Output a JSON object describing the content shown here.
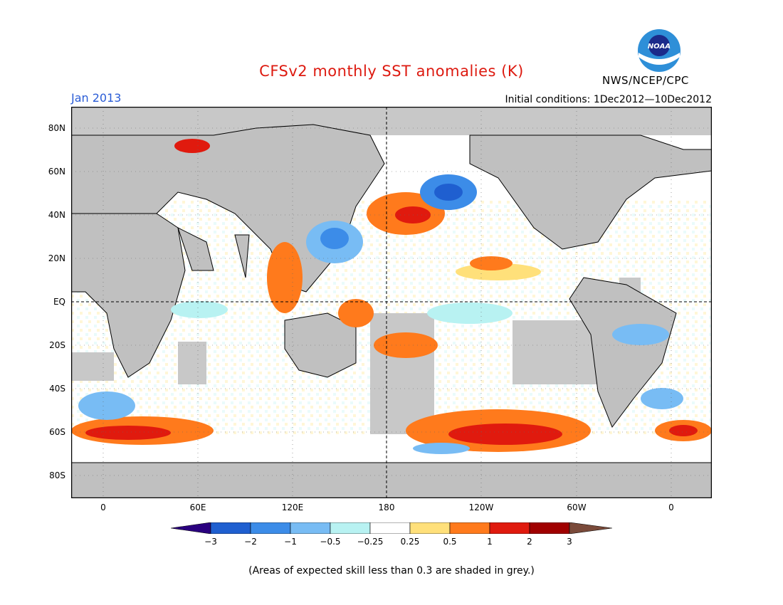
{
  "header": {
    "title": "CFSv2 monthly SST anomalies (K)",
    "month": "Jan 2013",
    "org": "NWS/NCEP/CPC",
    "initial_conditions": "Initial conditions: 1Dec2012—10Dec2012",
    "logo_text": "NOAA"
  },
  "map": {
    "lat_labels": [
      "80N",
      "60N",
      "40N",
      "20N",
      "EQ",
      "20S",
      "40S",
      "60S",
      "80S"
    ],
    "lon_labels": [
      "0",
      "60E",
      "120E",
      "180",
      "120W",
      "60W",
      "0"
    ]
  },
  "colorbar": {
    "labels": [
      "−3",
      "−2",
      "−1",
      "−0.5",
      "−0.25",
      "0.25",
      "0.5",
      "1",
      "2",
      "3"
    ],
    "colors": [
      "#2a007f",
      "#1f5fd0",
      "#3c8ce8",
      "#78bcf4",
      "#b8f2f2",
      "#ffffff",
      "#ffe07a",
      "#ff7a1c",
      "#e01a0e",
      "#a00000",
      "#7a4a3a"
    ]
  },
  "footnote": "(Areas of expected skill less than 0.3 are shaded in grey.)",
  "colors": {
    "title": "#dd1a10",
    "month": "#2a5cd6",
    "land": "#c0c0c0",
    "skill_grey": "#c8c8c8"
  }
}
